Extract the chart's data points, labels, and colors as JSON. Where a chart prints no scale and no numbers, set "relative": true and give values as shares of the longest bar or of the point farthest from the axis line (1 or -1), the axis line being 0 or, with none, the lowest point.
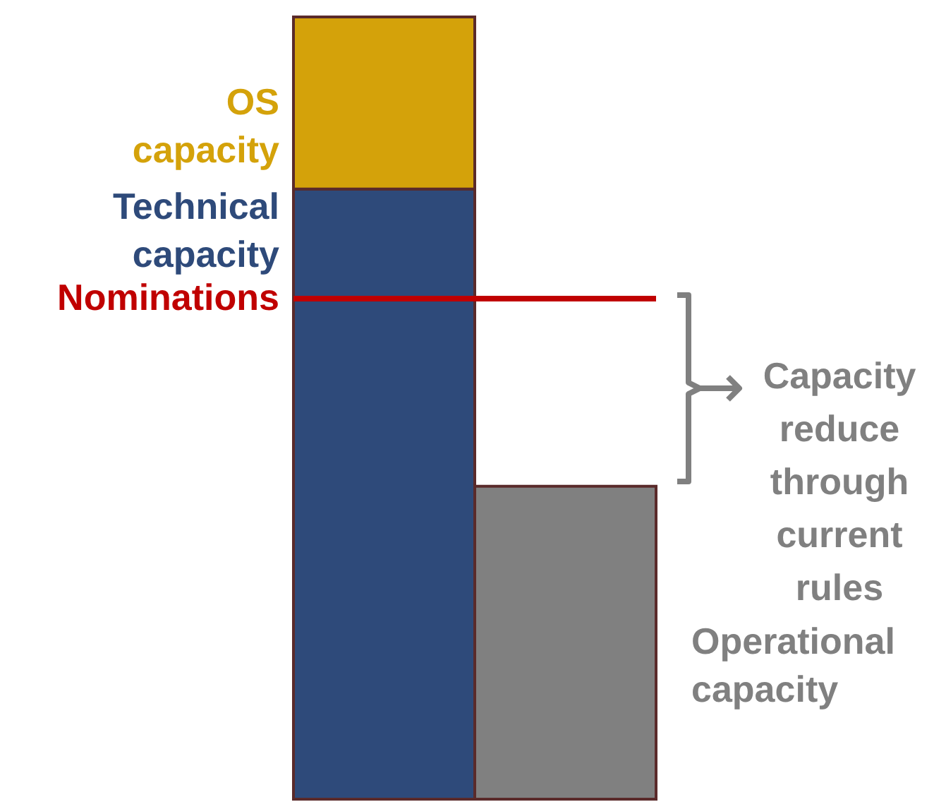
{
  "chart_data": {
    "type": "bar",
    "relative": true,
    "stacked": true,
    "categories": [
      null,
      null
    ],
    "series": [
      {
        "name": "Technical capacity",
        "color": "#2e4a7a",
        "values": [
          0.78,
          null
        ]
      },
      {
        "name": "OS capacity",
        "color": "#d4a20a",
        "values": [
          0.22,
          null
        ]
      },
      {
        "name": "Operational capacity",
        "color": "#808080",
        "values": [
          null,
          0.4
        ]
      }
    ],
    "ref_lines": [
      {
        "axis": "y",
        "value": 0.64,
        "label": "Nominations",
        "color": "#c00000"
      }
    ],
    "annotations": [
      "Capacity reduce through current rules"
    ]
  }
}
